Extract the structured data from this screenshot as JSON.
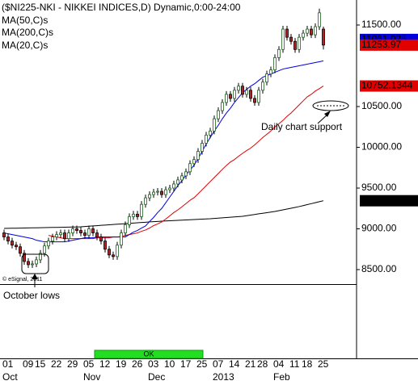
{
  "chart_data": {
    "type": "candlestick",
    "title": "($NI225-NKI - NIKKEI INDICES,D) Dynamic,0:00-24:00",
    "watermark": "© eSignal, 2011",
    "annotations": [
      "Daily chart support",
      "October lows"
    ],
    "status": "OK",
    "categories": [
      null,
      "01",
      null,
      null,
      null,
      null,
      "09",
      null,
      null,
      "15",
      null,
      null,
      null,
      "22",
      null,
      null,
      null,
      "29",
      null,
      null,
      null,
      "05",
      null,
      null,
      null,
      "12",
      null,
      null,
      null,
      "19",
      null,
      null,
      null,
      "26",
      null,
      null,
      null,
      "03",
      null,
      null,
      null,
      "10",
      null,
      null,
      null,
      "17",
      null,
      null,
      null,
      "25",
      null,
      null,
      null,
      "07",
      null,
      null,
      null,
      "14",
      null,
      null,
      null,
      "21",
      null,
      null,
      "28",
      null,
      null,
      null,
      "04",
      null,
      null,
      null,
      "11",
      null,
      null,
      "18",
      null,
      null,
      null,
      "25"
    ],
    "months": [
      null,
      "Oct",
      null,
      null,
      null,
      null,
      null,
      null,
      null,
      null,
      null,
      null,
      null,
      null,
      null,
      null,
      null,
      null,
      null,
      null,
      null,
      "Nov",
      null,
      null,
      null,
      null,
      null,
      null,
      null,
      null,
      null,
      null,
      null,
      null,
      null,
      null,
      null,
      "Dec",
      null,
      null,
      null,
      null,
      null,
      null,
      null,
      null,
      null,
      null,
      null,
      null,
      null,
      null,
      null,
      "2013",
      null,
      null,
      null,
      null,
      null,
      null,
      null,
      null,
      null,
      null,
      null,
      null,
      null,
      null,
      "Feb",
      null,
      null,
      null,
      null,
      null,
      null,
      null,
      null,
      null,
      null,
      null
    ],
    "ylim": [
      8322,
      11807
    ],
    "yticks": [
      {
        "value": 8500,
        "label": "8500.00"
      },
      {
        "value": 9000,
        "label": "9000.00"
      },
      {
        "value": 9500,
        "label": "9500.00"
      },
      {
        "value": 10000,
        "label": "10000.00"
      },
      {
        "value": 10500,
        "label": "10500.00"
      },
      {
        "value": 11500,
        "label": "11500.00"
      }
    ],
    "series": [
      {
        "up_color": "#1f5f1f",
        "down_color": "#b22222",
        "values": [
          [
            8950,
            8990,
            8860,
            8900
          ],
          [
            8900,
            8940,
            8810,
            8850
          ],
          [
            8850,
            8890,
            8760,
            8800
          ],
          [
            8800,
            8840,
            8740,
            8780
          ],
          [
            8780,
            8820,
            8660,
            8700
          ],
          [
            8700,
            8740,
            8560,
            8600
          ],
          [
            8600,
            8640,
            8520,
            8560
          ],
          [
            8560,
            8610,
            8520,
            8570
          ],
          [
            8570,
            8660,
            8530,
            8620
          ],
          [
            8620,
            8740,
            8580,
            8700
          ],
          [
            8700,
            8830,
            8660,
            8790
          ],
          [
            8790,
            8890,
            8750,
            8850
          ],
          [
            8850,
            8940,
            8810,
            8900
          ],
          [
            8900,
            8970,
            8860,
            8930
          ],
          [
            8930,
            8990,
            8890,
            8950
          ],
          [
            8950,
            8990,
            8840,
            8880
          ],
          [
            8880,
            8990,
            8840,
            8950
          ],
          [
            8950,
            9040,
            8910,
            9000
          ],
          [
            9000,
            9040,
            8940,
            8980
          ],
          [
            8980,
            9020,
            8910,
            8950
          ],
          [
            8950,
            8990,
            8880,
            8920
          ],
          [
            8920,
            9040,
            8880,
            9000
          ],
          [
            9000,
            9040,
            8910,
            8950
          ],
          [
            8950,
            8990,
            8860,
            8900
          ],
          [
            8900,
            8940,
            8810,
            8850
          ],
          [
            8850,
            8890,
            8710,
            8750
          ],
          [
            8750,
            8790,
            8640,
            8680
          ],
          [
            8680,
            8720,
            8620,
            8660
          ],
          [
            8660,
            8840,
            8620,
            8800
          ],
          [
            8800,
            8990,
            8760,
            8950
          ],
          [
            8950,
            9090,
            8910,
            9050
          ],
          [
            9050,
            9190,
            9010,
            9150
          ],
          [
            9150,
            9220,
            9110,
            9180
          ],
          [
            9180,
            9220,
            9110,
            9150
          ],
          [
            9150,
            9340,
            9110,
            9300
          ],
          [
            9300,
            9420,
            9260,
            9380
          ],
          [
            9380,
            9460,
            9340,
            9420
          ],
          [
            9420,
            9490,
            9380,
            9450
          ],
          [
            9450,
            9500,
            9410,
            9460
          ],
          [
            9460,
            9500,
            9380,
            9420
          ],
          [
            9420,
            9520,
            9380,
            9480
          ],
          [
            9480,
            9540,
            9440,
            9500
          ],
          [
            9500,
            9590,
            9460,
            9550
          ],
          [
            9550,
            9640,
            9510,
            9600
          ],
          [
            9600,
            9690,
            9560,
            9650
          ],
          [
            9650,
            9740,
            9610,
            9700
          ],
          [
            9700,
            9840,
            9660,
            9800
          ],
          [
            9800,
            9890,
            9760,
            9850
          ],
          [
            9850,
            9990,
            9810,
            9950
          ],
          [
            9950,
            10090,
            9910,
            10050
          ],
          [
            10050,
            10190,
            10010,
            10150
          ],
          [
            10150,
            10240,
            10110,
            10200
          ],
          [
            10200,
            10390,
            10160,
            10350
          ],
          [
            10350,
            10490,
            10310,
            10450
          ],
          [
            10450,
            10590,
            10410,
            10550
          ],
          [
            10550,
            10690,
            10510,
            10650
          ],
          [
            10650,
            10690,
            10560,
            10600
          ],
          [
            10600,
            10740,
            10560,
            10700
          ],
          [
            10700,
            10790,
            10660,
            10750
          ],
          [
            10750,
            10790,
            10610,
            10650
          ],
          [
            10650,
            10740,
            10610,
            10700
          ],
          [
            10700,
            10740,
            10560,
            10600
          ],
          [
            10600,
            10640,
            10510,
            10550
          ],
          [
            10550,
            10740,
            10510,
            10700
          ],
          [
            10700,
            10840,
            10660,
            10800
          ],
          [
            10800,
            10940,
            10760,
            10900
          ],
          [
            10900,
            10990,
            10860,
            10950
          ],
          [
            10950,
            11140,
            10910,
            11100
          ],
          [
            11100,
            11240,
            11060,
            11200
          ],
          [
            11200,
            11490,
            11160,
            11450
          ],
          [
            11450,
            11490,
            11310,
            11350
          ],
          [
            11350,
            11390,
            11260,
            11300
          ],
          [
            11300,
            11340,
            11160,
            11200
          ],
          [
            11200,
            11390,
            11160,
            11350
          ],
          [
            11350,
            11440,
            11310,
            11400
          ],
          [
            11400,
            11490,
            11360,
            11450
          ],
          [
            11450,
            11490,
            11340,
            11380
          ],
          [
            11380,
            11520,
            11340,
            11480
          ],
          [
            11480,
            11700,
            11440,
            11650
          ],
          [
            11450,
            11480,
            11200,
            11253.97
          ]
        ]
      },
      {
        "name": "MA(50,C)s",
        "color": "#e00000",
        "values": [
          null,
          null,
          null,
          null,
          null,
          null,
          null,
          null,
          null,
          null,
          null,
          8920,
          8910,
          8900,
          8890,
          8880,
          8880,
          8880,
          8880,
          8880,
          8880,
          8880,
          8880,
          8890,
          8890,
          8890,
          8890,
          8900,
          8900,
          8906,
          8920,
          8930,
          8940,
          8950,
          8970,
          8986,
          9010,
          9040,
          9060,
          9085,
          9120,
          9160,
          9200,
          9233,
          9270,
          9310,
          9350,
          9382,
          9430,
          9480,
          9530,
          9580,
          9630,
          9680,
          9730,
          9778,
          9820,
          9850,
          9890,
          9926,
          9960,
          9990,
          10030,
          10075,
          10120,
          10160,
          10200,
          10250,
          10290,
          10330,
          10380,
          10421,
          10470,
          10520,
          10570,
          10619,
          10650,
          10690,
          10720,
          10752.1344
        ]
      },
      {
        "name": "MA(200,C)s",
        "color": "#000000",
        "values": [
          9005,
          9006,
          9007,
          9008,
          9009,
          9010,
          9011,
          9012,
          9013,
          9014,
          9015,
          9016,
          9017,
          9018,
          9019,
          9020,
          9021,
          9022,
          9023,
          9025,
          9029,
          9032,
          9036,
          9039,
          9043,
          9046,
          9050,
          9053,
          9057,
          9060,
          9064,
          9067,
          9071,
          9074,
          9078,
          9081,
          9085,
          9088,
          9091,
          9094,
          9097,
          9099,
          9102,
          9104,
          9107,
          9109,
          9112,
          9114,
          9117,
          9119,
          9122,
          9124,
          9128,
          9131,
          9135,
          9139,
          9143,
          9146,
          9150,
          9154,
          9161,
          9169,
          9176,
          9184,
          9191,
          9198,
          9206,
          9213,
          9223,
          9233,
          9243,
          9253,
          9263,
          9273,
          9285,
          9297,
          9309,
          9321,
          9333,
          9344.68848
        ]
      },
      {
        "name": "MA(20,C)s",
        "color": "#0000dd",
        "values": [
          8950,
          8940,
          8930,
          8920,
          8910,
          8900,
          8890,
          8880,
          8860,
          8850,
          8840,
          8840,
          8840,
          8840,
          8840,
          8840,
          8850,
          8860,
          8870,
          8880,
          8890,
          8890,
          8890,
          8900,
          8900,
          8900,
          8900,
          8900,
          8900,
          8900,
          8900,
          8930,
          8960,
          8980,
          9010,
          9035,
          9090,
          9140,
          9200,
          9250,
          9320,
          9390,
          9460,
          9530,
          9590,
          9660,
          9720,
          9780,
          9860,
          9950,
          10040,
          10120,
          10200,
          10270,
          10350,
          10420,
          10480,
          10550,
          10610,
          10670,
          10710,
          10750,
          10780,
          10820,
          10860,
          10880,
          10900,
          10920,
          10940,
          10960,
          10970,
          10980,
          10990,
          11000,
          11010,
          11020,
          11030,
          11040,
          11050,
          11061.025
        ]
      }
    ]
  }
}
